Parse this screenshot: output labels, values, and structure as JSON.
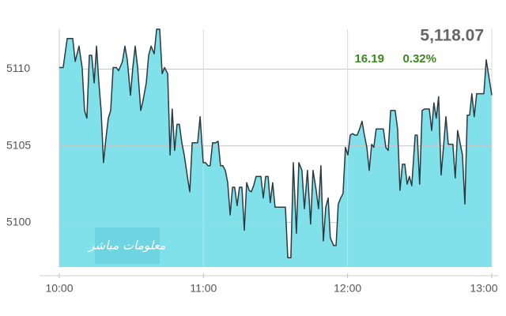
{
  "header": {
    "price": "5,118.07",
    "change": "16.19",
    "change_percent": "0.32%",
    "watermark": "معلومات مباشر"
  },
  "chart_data": {
    "type": "area",
    "grid": true,
    "xlim": [
      0,
      180
    ],
    "xticks": [
      {
        "value": 0,
        "label": "10:00"
      },
      {
        "value": 60,
        "label": "11:00"
      },
      {
        "value": 120,
        "label": "12:00"
      },
      {
        "value": 180,
        "label": "13:00"
      }
    ],
    "ylim": [
      5097.1,
      5112.6
    ],
    "yticks": [
      5100,
      5105,
      5110
    ],
    "series": [
      {
        "color": "#2b3940",
        "fill": "#80e1eb",
        "x": [
          0,
          1.6,
          3.3,
          5.6,
          6.6,
          8.2,
          9.5,
          10.5,
          11.5,
          12.5,
          13.5,
          14.5,
          15.5,
          16.4,
          17.4,
          18.4,
          19.4,
          20.4,
          21.4,
          22.4,
          23.7,
          24.7,
          26.3,
          27.3,
          28.3,
          29.6,
          30.6,
          31.6,
          32.6,
          33.9,
          34.9,
          36.2,
          37.2,
          38.2,
          39.5,
          40.5,
          41.8,
          42.8,
          43.8,
          45.1,
          46.1,
          47,
          48,
          49,
          50,
          51,
          52,
          53.3,
          54.3,
          55.3,
          56.3,
          57.6,
          58.6,
          59.9,
          60.9,
          61.9,
          62.8,
          63.8,
          65.1,
          66.1,
          67.1,
          68.1,
          69.1,
          70.1,
          71.1,
          72.1,
          73,
          74,
          75,
          76,
          77,
          78,
          79,
          79.9,
          80.9,
          81.9,
          82.9,
          83.9,
          84.9,
          85.9,
          86.9,
          87.8,
          88.8,
          89.8,
          90.8,
          92.4,
          94.1,
          95.1,
          96.4,
          97.4,
          98.7,
          99.7,
          101,
          102,
          103.3,
          104.6,
          105.6,
          106.9,
          107.9,
          108.9,
          109.9,
          110.9,
          111.9,
          112.8,
          114.2,
          115.2,
          116.1,
          117.1,
          118.1,
          119.1,
          120.1,
          121.1,
          122.1,
          123,
          124,
          125,
          126,
          127,
          128,
          129,
          130,
          130.9,
          131.9,
          132.9,
          133.9,
          134.9,
          135.9,
          136.9,
          137.9,
          138.8,
          139.8,
          140.8,
          141.8,
          142.8,
          143.8,
          144.8,
          145.7,
          146.7,
          148.1,
          149,
          150,
          151,
          152,
          153,
          154,
          155,
          155.9,
          156.9,
          157.9,
          158.9,
          159.9,
          160.9,
          161.9,
          162.9,
          163.8,
          164.8,
          165.8,
          166.8,
          167.8,
          168.8,
          169.8,
          170.8,
          171.7,
          172.7,
          173.7,
          174.7,
          175.7,
          176.7,
          177.7,
          179,
          180
        ],
        "values": [
          5110.1,
          5110.1,
          5112,
          5112,
          5110.5,
          5111.5,
          5110.1,
          5107.3,
          5106.8,
          5110.9,
          5110.9,
          5109.1,
          5111.5,
          5109.3,
          5107.3,
          5103.9,
          5105.5,
          5106.8,
          5107.3,
          5110.1,
          5110.1,
          5109.9,
          5110.5,
          5111.5,
          5110.6,
          5108.3,
          5110.1,
          5111.5,
          5110.1,
          5107.3,
          5108,
          5109.1,
          5110.9,
          5111.5,
          5111,
          5112.6,
          5112.6,
          5109.7,
          5110.1,
          5109.7,
          5104.4,
          5107.4,
          5104.7,
          5106.4,
          5106.4,
          5105.2,
          5104.4,
          5103,
          5102,
          5105.2,
          5105.2,
          5105.2,
          5106.9,
          5103.9,
          5103.9,
          5103.7,
          5103.7,
          5105.2,
          5105.2,
          5105.3,
          5103.7,
          5103.7,
          5103.4,
          5102.6,
          5100.5,
          5102.3,
          5102.3,
          5101.1,
          5102.3,
          5102.3,
          5099.5,
          5102.6,
          5102.1,
          5102,
          5102.4,
          5103,
          5103,
          5103,
          5101.6,
          5103,
          5103,
          5101.3,
          5102.6,
          5101,
          5101,
          5101,
          5101,
          5097.7,
          5097.7,
          5103.9,
          5099.3,
          5103.9,
          5103.4,
          5100.9,
          5103.4,
          5099.9,
          5103.4,
          5102.1,
          5100.9,
          5103.7,
          5098.8,
          5101,
          5101.6,
          5099,
          5098.5,
          5098.5,
          5101.2,
          5101.6,
          5101.9,
          5104.9,
          5104.4,
          5105.7,
          5105.8,
          5105.7,
          5105.7,
          5106.1,
          5106.6,
          5105.7,
          5104.9,
          5103.4,
          5105.1,
          5104.9,
          5106.1,
          5106.1,
          5106.1,
          5106.1,
          5104.9,
          5104.7,
          5107.3,
          5107.3,
          5107.3,
          5106.1,
          5102.1,
          5103.8,
          5103.8,
          5102.5,
          5103,
          5102.4,
          5105.7,
          5105.7,
          5102.5,
          5107.3,
          5107.4,
          5107.4,
          5107.4,
          5106,
          5107.8,
          5106.8,
          5108.2,
          5103.1,
          5104.9,
          5106.9,
          5105.1,
          5105.1,
          5105.1,
          5102.9,
          5106,
          5105.2,
          5104.4,
          5101.2,
          5107,
          5107,
          5108.4,
          5106.9,
          5108.4,
          5108.4,
          5108.4,
          5108.4,
          5110.6,
          5109.3,
          5108.3
        ]
      }
    ]
  }
}
